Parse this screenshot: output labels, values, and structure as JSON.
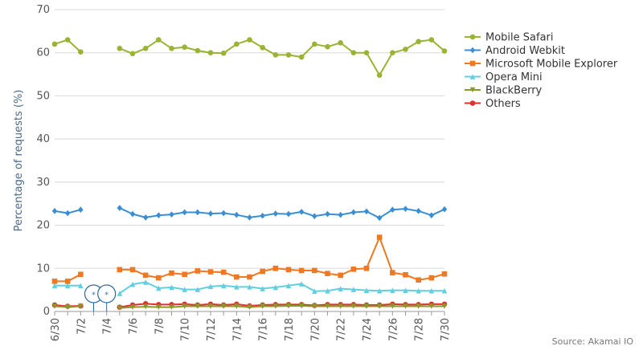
{
  "chart_data": {
    "type": "line",
    "title": "",
    "xlabel": "",
    "ylabel": "Percentage of requests (%)",
    "ylim": [
      0,
      70
    ],
    "yticks": [
      0,
      10,
      20,
      30,
      40,
      50,
      60,
      70
    ],
    "grid": "horizontal",
    "legend_position": "right",
    "x": [
      "6/30",
      "7/1",
      "7/2",
      "7/3",
      "7/4",
      "7/5",
      "7/6",
      "7/7",
      "7/8",
      "7/9",
      "7/10",
      "7/11",
      "7/12",
      "7/13",
      "7/14",
      "7/15",
      "7/16",
      "7/17",
      "7/18",
      "7/19",
      "7/20",
      "7/21",
      "7/22",
      "7/23",
      "7/24",
      "7/25",
      "7/26",
      "7/27",
      "7/28",
      "7/29",
      "7/30"
    ],
    "x_tick_labels": [
      "6/30",
      "7/2",
      "7/4",
      "7/6",
      "7/8",
      "7/10",
      "7/12",
      "7/14",
      "7/16",
      "7/18",
      "7/20",
      "7/22",
      "7/24",
      "7/26",
      "7/28",
      "7/30"
    ],
    "series": [
      {
        "name": "Mobile Safari",
        "color": "#99b433",
        "marker": "circle",
        "values": [
          62,
          63,
          60.2,
          null,
          null,
          61,
          59.8,
          61,
          63,
          61,
          61.3,
          60.5,
          60,
          59.9,
          62,
          63,
          61.2,
          59.5,
          59.5,
          59,
          62,
          61.4,
          62.3,
          60,
          60,
          54.8,
          60,
          60.8,
          62.6,
          63,
          60.4
        ]
      },
      {
        "name": "Android Webkit",
        "color": "#3a8fd4",
        "marker": "diamond",
        "values": [
          23.3,
          22.8,
          23.6,
          null,
          null,
          24,
          22.6,
          21.8,
          22.3,
          22.5,
          23,
          23,
          22.7,
          22.8,
          22.4,
          21.8,
          22.2,
          22.7,
          22.6,
          23.1,
          22.1,
          22.6,
          22.4,
          23,
          23.2,
          21.7,
          23.6,
          23.8,
          23.3,
          22.3,
          23.7
        ]
      },
      {
        "name": "Microsoft Mobile Explorer",
        "color": "#f07820",
        "marker": "square",
        "values": [
          7,
          7,
          8.6,
          null,
          null,
          9.7,
          9.7,
          8.4,
          7.8,
          8.9,
          8.6,
          9.4,
          9.2,
          9.1,
          8,
          8,
          9.3,
          10,
          9.7,
          9.5,
          9.5,
          8.8,
          8.4,
          9.8,
          10,
          17.2,
          9,
          8.5,
          7.3,
          7.8,
          8.7
        ]
      },
      {
        "name": "Opera Mini",
        "color": "#62cfe0",
        "marker": "triangle",
        "values": [
          6,
          6,
          6,
          null,
          null,
          4.2,
          6.3,
          6.8,
          5.4,
          5.6,
          5.1,
          5.1,
          5.8,
          6,
          5.7,
          5.7,
          5.3,
          5.6,
          6,
          6.4,
          4.7,
          4.8,
          5.3,
          5.1,
          4.9,
          4.8,
          4.9,
          4.9,
          4.8,
          4.8,
          4.8
        ]
      },
      {
        "name": "BlackBerry",
        "color": "#8a9a2a",
        "marker": "triangle-down",
        "values": [
          1.2,
          1,
          1.2,
          null,
          null,
          0.8,
          1,
          1.1,
          1,
          1,
          1.2,
          1.2,
          1.2,
          1.2,
          1.2,
          1,
          1.2,
          1.2,
          1.3,
          1.3,
          1.2,
          1.2,
          1.2,
          1.2,
          1.2,
          1.2,
          1.2,
          1.2,
          1.2,
          1.2,
          1.2
        ]
      },
      {
        "name": "Others",
        "color": "#e03030",
        "marker": "circle",
        "values": [
          1.5,
          1.2,
          1.3,
          null,
          null,
          1,
          1.5,
          1.8,
          1.6,
          1.6,
          1.7,
          1.5,
          1.7,
          1.5,
          1.7,
          1.3,
          1.5,
          1.6,
          1.6,
          1.6,
          1.4,
          1.6,
          1.6,
          1.6,
          1.5,
          1.5,
          1.7,
          1.6,
          1.6,
          1.7,
          1.7
        ]
      }
    ],
    "annotations": [
      {
        "x": "7/3",
        "text": "*",
        "shape": "balloon"
      },
      {
        "x": "7/4",
        "text": "*",
        "shape": "balloon"
      }
    ]
  },
  "source": "Source: Akamai IO"
}
